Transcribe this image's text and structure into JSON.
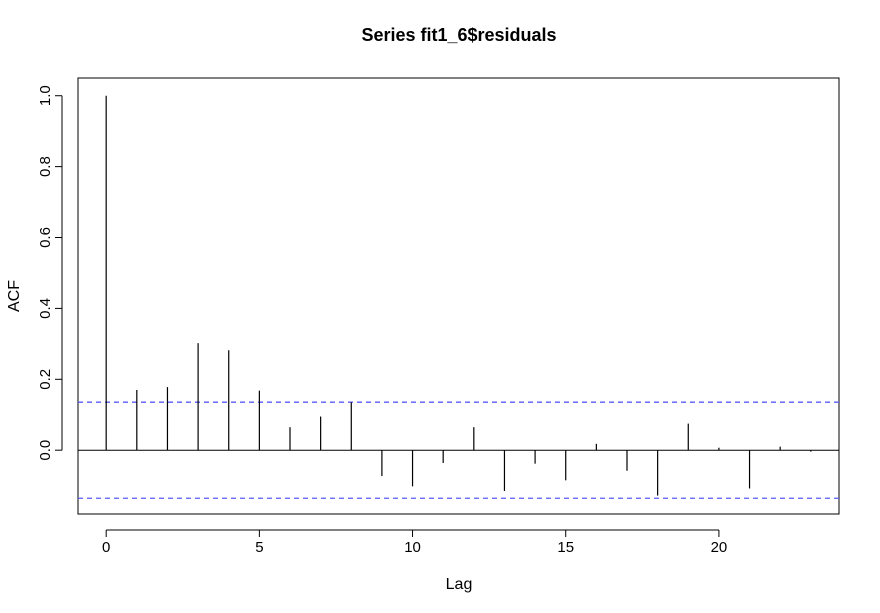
{
  "chart_data": {
    "type": "bar",
    "title": "Series  fit1_6$residuals",
    "xlabel": "Lag",
    "ylabel": "ACF",
    "lags": [
      0,
      1,
      2,
      3,
      4,
      5,
      6,
      7,
      8,
      9,
      10,
      11,
      12,
      13,
      14,
      15,
      16,
      17,
      18,
      19,
      20,
      21,
      22,
      23
    ],
    "acf": [
      1.0,
      0.17,
      0.178,
      0.302,
      0.282,
      0.168,
      0.065,
      0.095,
      0.135,
      -0.073,
      -0.102,
      -0.036,
      0.065,
      -0.115,
      -0.038,
      -0.085,
      0.018,
      -0.058,
      -0.128,
      0.075,
      0.007,
      -0.108,
      0.01,
      -0.004
    ],
    "conf_limit": 0.1355,
    "conf_color": "#5a5aff",
    "xlim": [
      -0.92,
      23.92
    ],
    "ylim": [
      -0.18,
      1.05
    ],
    "xticks": [
      "0",
      "5",
      "10",
      "15",
      "20"
    ],
    "yticks": [
      "0.0",
      "0.2",
      "0.4",
      "0.6",
      "0.8",
      "1.0"
    ],
    "grid": false,
    "legend": "none"
  }
}
